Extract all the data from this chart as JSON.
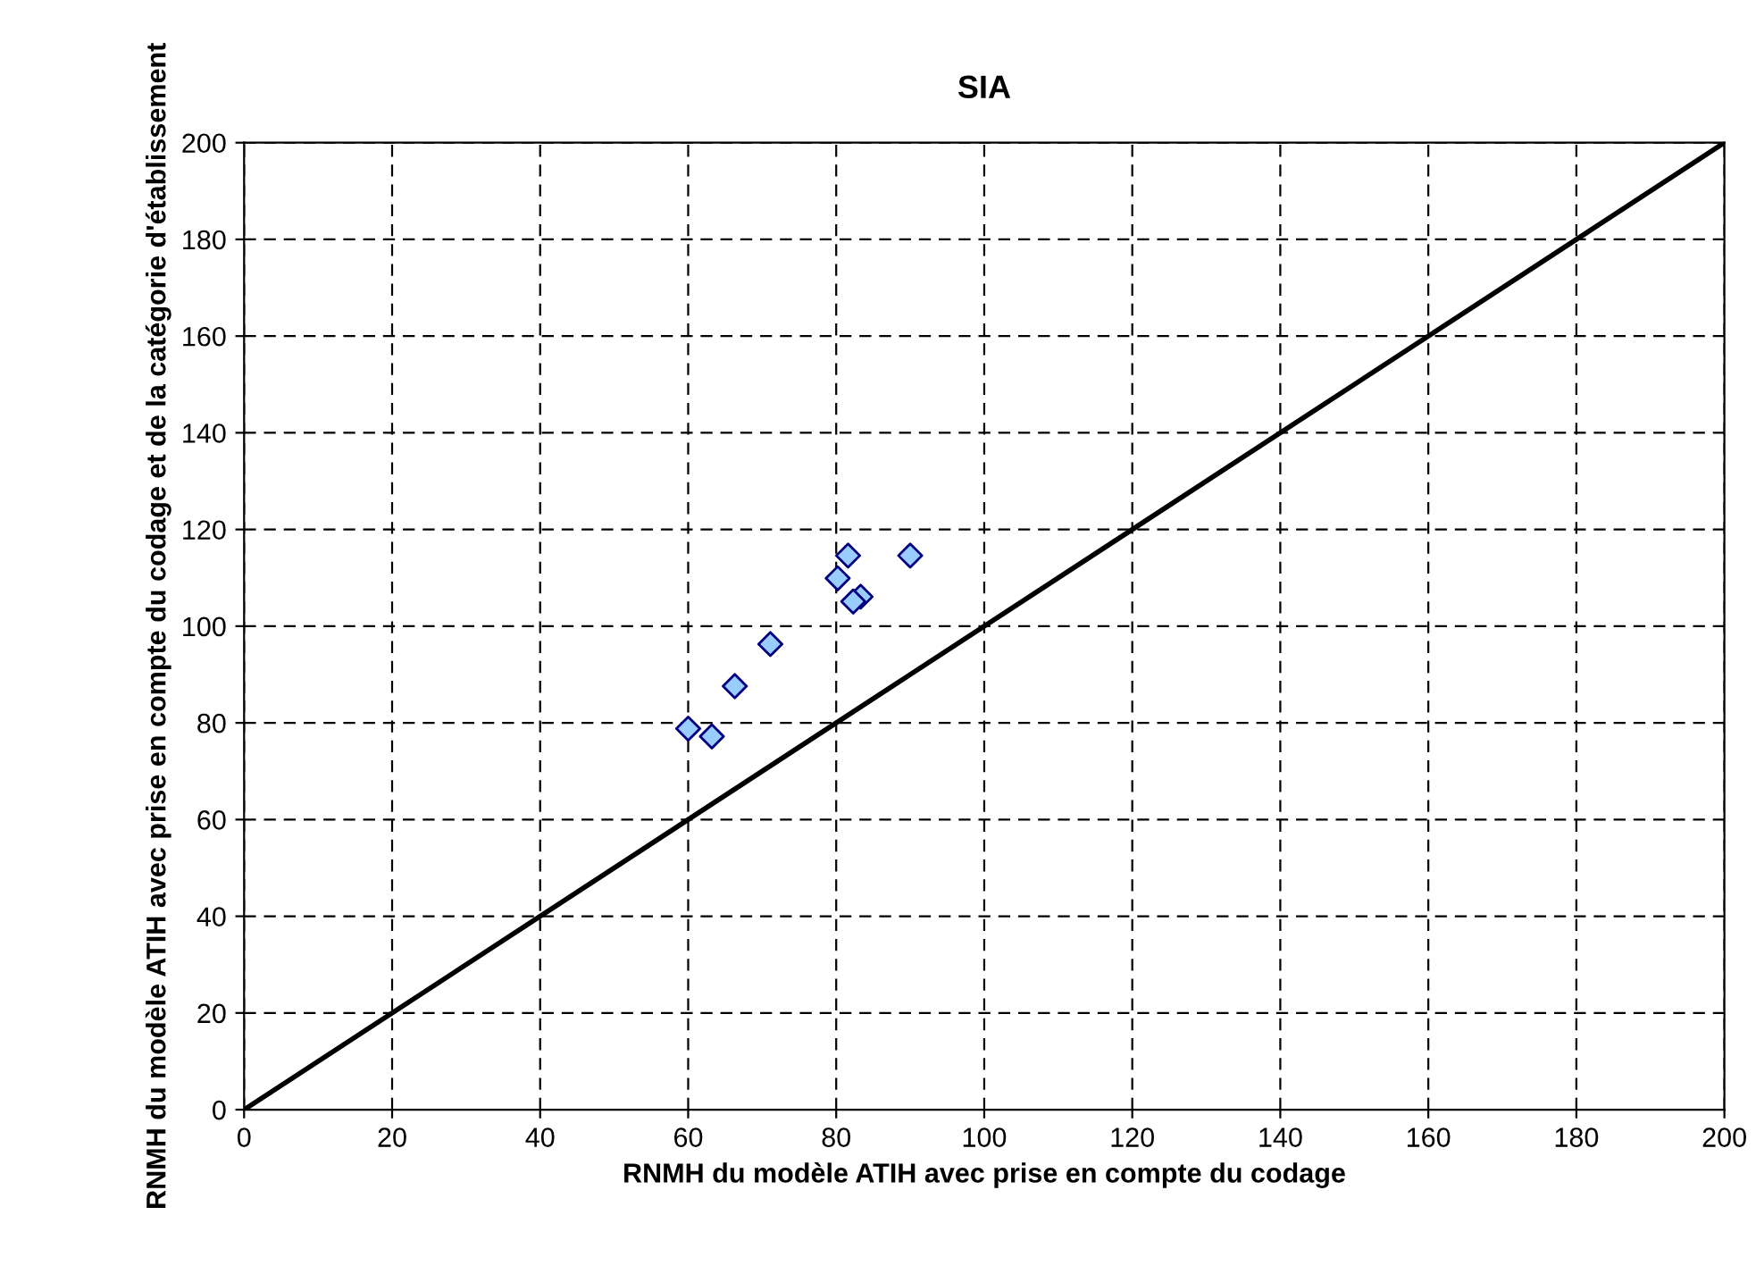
{
  "chart_data": {
    "type": "scatter",
    "title": "SIA",
    "xlabel": "RNMH du modèle ATIH avec prise en compte du codage",
    "ylabel": "RNMH du modèle ATIH avec prise en compte du codage et de la catégorie d'établissement",
    "series": [
      {
        "color": "#99ccff",
        "marker": "diamond",
        "x": [
          81.6,
          90.0,
          80.2,
          83.3,
          82.3,
          71.1,
          66.3,
          60,
          63.2
        ],
        "values": [
          114.6,
          114.6,
          109.9,
          106.1,
          105.1,
          96.3,
          87.6,
          78.8,
          77.2
        ]
      },
      {
        "type": "line",
        "color": "#000000",
        "marker": "none",
        "line_style": "solid",
        "x": [
          0,
          200
        ],
        "values": [
          0,
          200
        ]
      }
    ],
    "xlim": [
      0,
      200
    ],
    "ylim": [
      0,
      200
    ],
    "xticks": [
      0,
      20,
      40,
      60,
      80,
      100,
      120,
      140,
      160,
      180,
      200
    ],
    "yticks": [
      0,
      20,
      40,
      60,
      80,
      100,
      120,
      140,
      160,
      180,
      200
    ],
    "grid": true,
    "legend": false
  }
}
